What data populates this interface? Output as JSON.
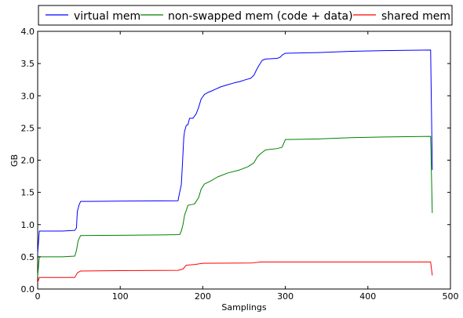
{
  "chart_data": {
    "type": "line",
    "xlabel": "Samplings",
    "ylabel": "GB",
    "xlim": [
      0,
      500
    ],
    "ylim": [
      0,
      4.0
    ],
    "xticks": [
      "0",
      "100",
      "200",
      "300",
      "400",
      "500"
    ],
    "yticks": [
      "0.0",
      "0.5",
      "1.0",
      "1.5",
      "2.0",
      "2.5",
      "3.0",
      "3.5",
      "4.0"
    ],
    "grid": false,
    "legend": "top",
    "series": [
      {
        "name": "virtual mem",
        "color": "#0000ff",
        "points": [
          [
            0,
            0.55
          ],
          [
            2,
            0.9
          ],
          [
            30,
            0.9
          ],
          [
            45,
            0.91
          ],
          [
            47,
            0.95
          ],
          [
            48,
            1.2
          ],
          [
            50,
            1.3
          ],
          [
            52,
            1.36
          ],
          [
            60,
            1.36
          ],
          [
            100,
            1.365
          ],
          [
            170,
            1.37
          ],
          [
            172,
            1.5
          ],
          [
            174,
            1.62
          ],
          [
            175,
            1.85
          ],
          [
            176,
            2.1
          ],
          [
            177,
            2.35
          ],
          [
            178,
            2.45
          ],
          [
            180,
            2.54
          ],
          [
            182,
            2.55
          ],
          [
            184,
            2.65
          ],
          [
            188,
            2.65
          ],
          [
            192,
            2.72
          ],
          [
            195,
            2.82
          ],
          [
            198,
            2.95
          ],
          [
            202,
            3.02
          ],
          [
            206,
            3.05
          ],
          [
            210,
            3.07
          ],
          [
            215,
            3.1
          ],
          [
            222,
            3.14
          ],
          [
            230,
            3.17
          ],
          [
            238,
            3.2
          ],
          [
            245,
            3.22
          ],
          [
            252,
            3.25
          ],
          [
            258,
            3.27
          ],
          [
            262,
            3.32
          ],
          [
            265,
            3.4
          ],
          [
            268,
            3.47
          ],
          [
            272,
            3.55
          ],
          [
            276,
            3.57
          ],
          [
            290,
            3.58
          ],
          [
            294,
            3.6
          ],
          [
            296,
            3.63
          ],
          [
            300,
            3.66
          ],
          [
            340,
            3.67
          ],
          [
            380,
            3.69
          ],
          [
            420,
            3.7
          ],
          [
            476,
            3.71
          ],
          [
            478,
            1.85
          ]
        ]
      },
      {
        "name": "non-swapped mem (code + data)",
        "color": "#008000",
        "points": [
          [
            0,
            0.2
          ],
          [
            2,
            0.5
          ],
          [
            30,
            0.5
          ],
          [
            45,
            0.51
          ],
          [
            47,
            0.6
          ],
          [
            49,
            0.75
          ],
          [
            52,
            0.83
          ],
          [
            100,
            0.835
          ],
          [
            150,
            0.84
          ],
          [
            172,
            0.845
          ],
          [
            174,
            0.9
          ],
          [
            176,
            1.0
          ],
          [
            178,
            1.15
          ],
          [
            180,
            1.22
          ],
          [
            182,
            1.3
          ],
          [
            190,
            1.32
          ],
          [
            195,
            1.42
          ],
          [
            198,
            1.55
          ],
          [
            202,
            1.63
          ],
          [
            210,
            1.68
          ],
          [
            218,
            1.74
          ],
          [
            230,
            1.8
          ],
          [
            245,
            1.85
          ],
          [
            255,
            1.9
          ],
          [
            262,
            1.96
          ],
          [
            266,
            2.05
          ],
          [
            270,
            2.1
          ],
          [
            276,
            2.16
          ],
          [
            290,
            2.18
          ],
          [
            296,
            2.2
          ],
          [
            300,
            2.32
          ],
          [
            340,
            2.33
          ],
          [
            380,
            2.35
          ],
          [
            420,
            2.36
          ],
          [
            476,
            2.37
          ],
          [
            478,
            1.18
          ]
        ]
      },
      {
        "name": "shared mem",
        "color": "#ff0000",
        "points": [
          [
            0,
            0.1
          ],
          [
            2,
            0.18
          ],
          [
            45,
            0.18
          ],
          [
            48,
            0.25
          ],
          [
            52,
            0.28
          ],
          [
            100,
            0.285
          ],
          [
            170,
            0.29
          ],
          [
            176,
            0.31
          ],
          [
            180,
            0.37
          ],
          [
            190,
            0.38
          ],
          [
            200,
            0.4
          ],
          [
            260,
            0.405
          ],
          [
            270,
            0.42
          ],
          [
            476,
            0.42
          ],
          [
            478,
            0.21
          ]
        ]
      }
    ]
  }
}
